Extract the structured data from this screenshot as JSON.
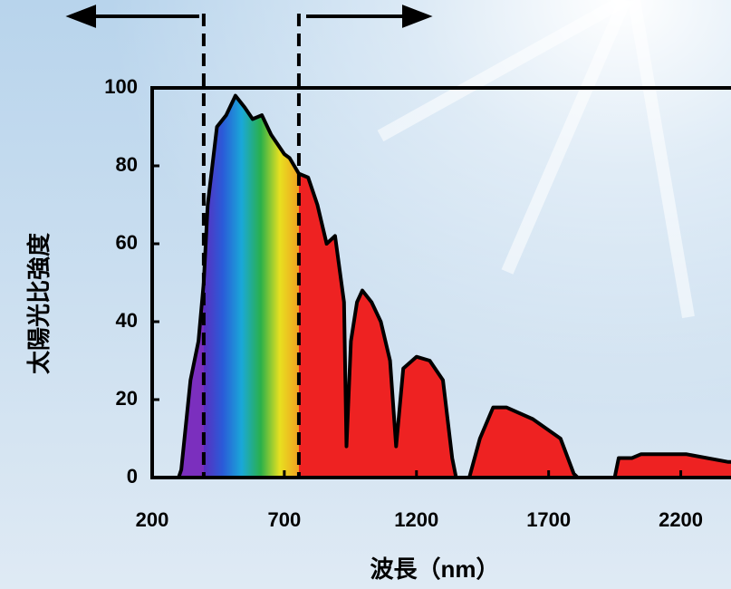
{
  "chart_data": {
    "type": "area",
    "x_label": "波長（nm）",
    "y_label": "太陽光比強度",
    "x": [
      300,
      310,
      345,
      375,
      395,
      410,
      445,
      480,
      515,
      550,
      580,
      615,
      650,
      700,
      720,
      755,
      790,
      825,
      860,
      892,
      926,
      935,
      952,
      975,
      995,
      1030,
      1065,
      1100,
      1123,
      1150,
      1200,
      1250,
      1300,
      1335,
      1350,
      1400,
      1440,
      1490,
      1540,
      1640,
      1745,
      1795,
      1810,
      1950,
      1965,
      2015,
      2050,
      2220,
      2380,
      2390
    ],
    "values": [
      0,
      2,
      25,
      35,
      50,
      70,
      90,
      93,
      98,
      95,
      92,
      93,
      88,
      83,
      82,
      78,
      77,
      70,
      60,
      62,
      45,
      8,
      35,
      45,
      48,
      45,
      40,
      30,
      8,
      28,
      31,
      30,
      25,
      5,
      0,
      0,
      10,
      18,
      18,
      15,
      10,
      1,
      0,
      0,
      5,
      5,
      6,
      6,
      4,
      4
    ],
    "line_color": "#000000",
    "fill_color": "#ee2222",
    "vlines": [
      395,
      755
    ],
    "xlim": [
      200,
      2390
    ],
    "xticks": [
      200,
      700,
      1200,
      1700,
      2200
    ],
    "ylim": [
      0,
      100
    ],
    "yticks": [
      0,
      20,
      40,
      60,
      80,
      100
    ]
  }
}
